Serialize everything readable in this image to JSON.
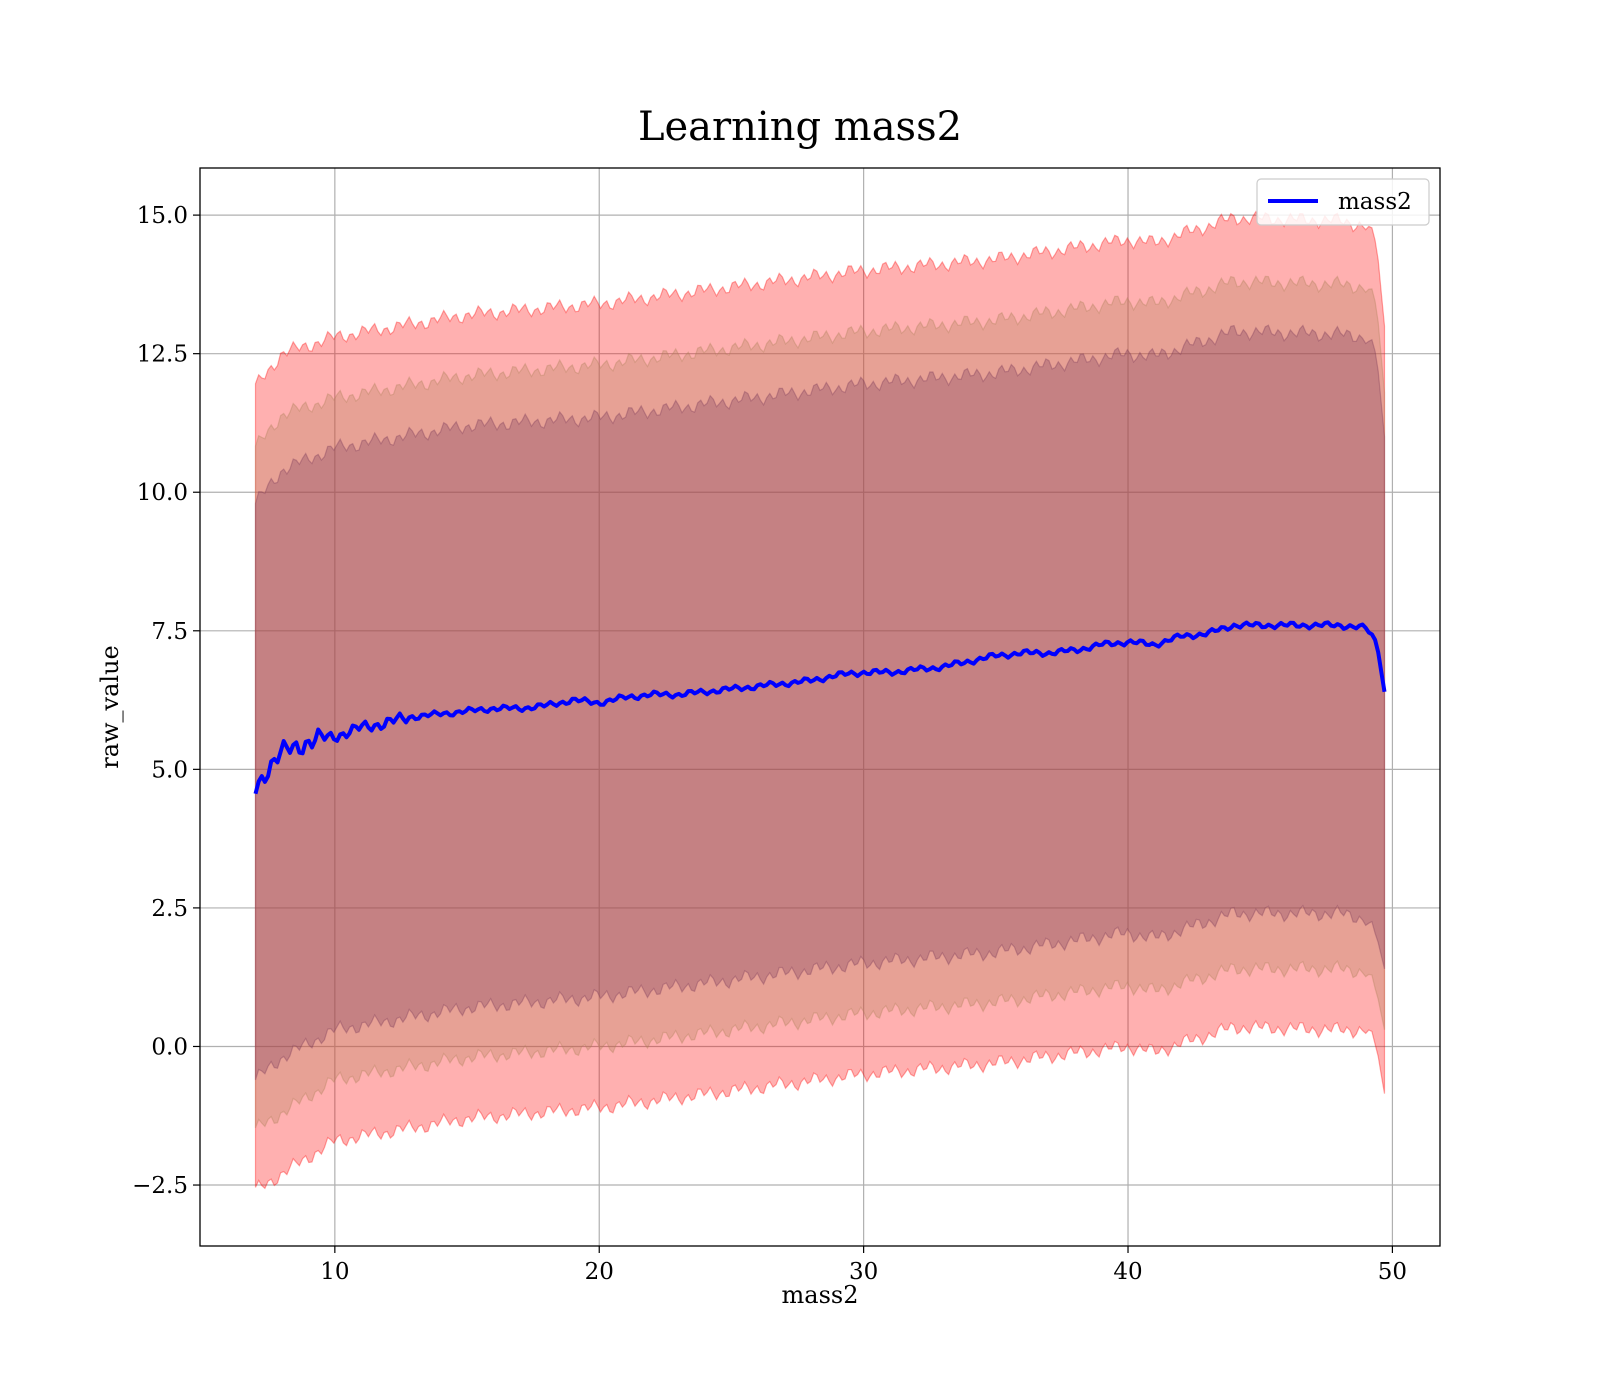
{
  "chart_data": {
    "type": "line",
    "title": "Learning mass2",
    "xlabel": "mass2",
    "ylabel": "raw_value",
    "xlim": [
      4.9,
      51.8
    ],
    "ylim": [
      -3.6,
      15.85
    ],
    "xticks": [
      10,
      20,
      30,
      40,
      50
    ],
    "xtick_labels": [
      "10",
      "20",
      "30",
      "40",
      "50"
    ],
    "yticks": [
      -2.5,
      0.0,
      2.5,
      5.0,
      7.5,
      10.0,
      12.5,
      15.0
    ],
    "ytick_labels": [
      "−2.5",
      "0.0",
      "2.5",
      "5.0",
      "7.5",
      "10.0",
      "12.5",
      "15.0"
    ],
    "grid": true,
    "legend_position": "top-right",
    "series": [
      {
        "name": "mass2",
        "color": "#0000ff",
        "x": [
          7.0,
          7.5,
          8.0,
          9.0,
          10.0,
          11.0,
          12.0,
          13.0,
          14.0,
          15.0,
          16.0,
          17.0,
          18.0,
          19.0,
          20.0,
          21.0,
          22.0,
          23.0,
          24.0,
          25.0,
          26.0,
          27.0,
          28.0,
          29.0,
          30.0,
          31.0,
          32.0,
          33.0,
          34.0,
          35.0,
          36.0,
          37.0,
          38.0,
          39.0,
          40.0,
          41.0,
          42.0,
          43.0,
          44.0,
          45.0,
          46.0,
          47.0,
          48.0,
          49.0,
          49.4,
          49.7
        ],
        "y": [
          4.65,
          5.05,
          5.3,
          5.5,
          5.6,
          5.75,
          5.85,
          5.95,
          6.0,
          6.05,
          6.1,
          6.1,
          6.15,
          6.25,
          6.2,
          6.3,
          6.35,
          6.35,
          6.4,
          6.45,
          6.5,
          6.55,
          6.6,
          6.7,
          6.75,
          6.75,
          6.8,
          6.85,
          6.95,
          7.05,
          7.1,
          7.1,
          7.15,
          7.25,
          7.3,
          7.25,
          7.4,
          7.45,
          7.6,
          7.6,
          7.6,
          7.6,
          7.6,
          7.55,
          7.3,
          6.4
        ]
      }
    ],
    "bands": [
      {
        "color": "#ff0000",
        "x": [
          7.0,
          8.0,
          10.0,
          15.0,
          20.0,
          25.0,
          30.0,
          35.0,
          40.0,
          41.0,
          44.0,
          48.0,
          49.0,
          49.4,
          49.7
        ],
        "upper": [
          11.9,
          12.5,
          12.8,
          13.2,
          13.4,
          13.7,
          14.0,
          14.2,
          14.55,
          14.5,
          14.95,
          14.9,
          14.8,
          14.5,
          13.0
        ],
        "lower": [
          -2.6,
          -2.3,
          -1.7,
          -1.3,
          -1.1,
          -0.8,
          -0.5,
          -0.3,
          0.0,
          -0.1,
          0.35,
          0.3,
          0.3,
          0.0,
          -0.85
        ]
      },
      {
        "color": "#b0805a",
        "x": [
          7.0,
          8.0,
          10.0,
          15.0,
          20.0,
          25.0,
          30.0,
          35.0,
          40.0,
          41.0,
          44.0,
          48.0,
          49.0,
          49.4,
          49.7
        ],
        "upper": [
          10.8,
          11.4,
          11.7,
          12.1,
          12.3,
          12.6,
          12.9,
          13.1,
          13.45,
          13.4,
          13.8,
          13.75,
          13.7,
          13.4,
          11.8
        ],
        "lower": [
          -1.5,
          -1.2,
          -0.6,
          -0.2,
          0.0,
          0.3,
          0.6,
          0.8,
          1.1,
          1.0,
          1.4,
          1.4,
          1.35,
          1.0,
          0.3
        ]
      },
      {
        "color": "#7a3a5a",
        "x": [
          7.0,
          8.0,
          10.0,
          15.0,
          20.0,
          25.0,
          30.0,
          35.0,
          40.0,
          41.0,
          44.0,
          48.0,
          49.0,
          49.4,
          49.7
        ],
        "upper": [
          9.8,
          10.4,
          10.8,
          11.2,
          11.35,
          11.65,
          11.95,
          12.15,
          12.5,
          12.45,
          12.9,
          12.85,
          12.8,
          12.5,
          11.0
        ],
        "lower": [
          -0.6,
          -0.2,
          0.3,
          0.7,
          0.9,
          1.2,
          1.5,
          1.7,
          2.05,
          1.95,
          2.4,
          2.4,
          2.3,
          2.0,
          1.4
        ]
      }
    ]
  }
}
